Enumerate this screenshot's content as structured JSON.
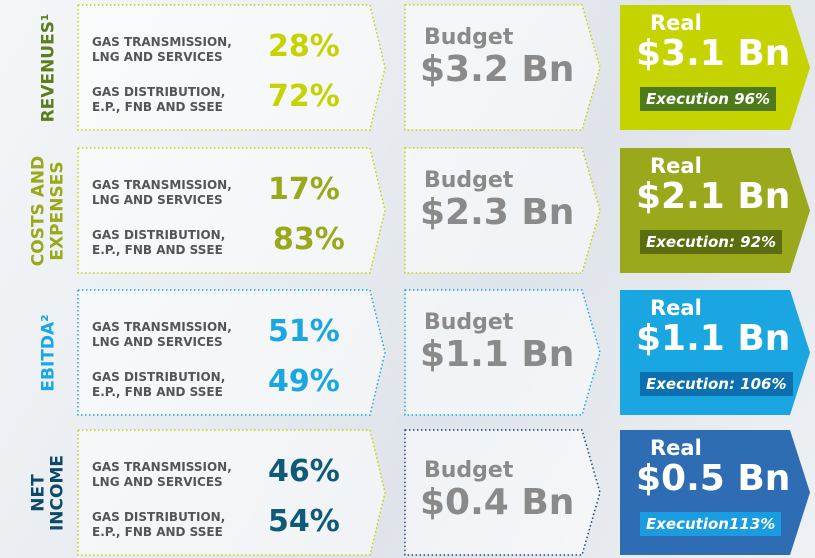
{
  "rows": [
    {
      "label": [
        "REVENUES¹"
      ],
      "items": [
        {
          "label": [
            "GAS TRANSMISSION,",
            "LNG AND SERVICES"
          ],
          "value": "28%"
        },
        {
          "label": [
            "GAS DISTRIBUTION,",
            "E.P., FNB AND SSEE"
          ],
          "value": "72%"
        }
      ],
      "budget": {
        "label": "Budget",
        "amount": "$3.2 Bn"
      },
      "real": {
        "label": "Real",
        "amount": "$3.1 Bn",
        "execution": "Execution 96%"
      }
    },
    {
      "label": [
        "COSTS AND",
        "EXPENSES"
      ],
      "items": [
        {
          "label": [
            "GAS TRANSMISSION,",
            "LNG AND SERVICES"
          ],
          "value": "17%"
        },
        {
          "label": [
            "GAS DISTRIBUTION,",
            "E.P., FNB AND SSEE"
          ],
          "value": "83%"
        }
      ],
      "budget": {
        "label": "Budget",
        "amount": "$2.3 Bn"
      },
      "real": {
        "label": "Real",
        "amount": "$2.1 Bn",
        "execution": "Execution: 92%"
      }
    },
    {
      "label": [
        "EBITDA²"
      ],
      "items": [
        {
          "label": [
            "GAS TRANSMISSION,",
            "LNG AND SERVICES"
          ],
          "value": "51%"
        },
        {
          "label": [
            "GAS DISTRIBUTION,",
            "E.P., FNB AND SSEE"
          ],
          "value": "49%"
        }
      ],
      "budget": {
        "label": "Budget",
        "amount": "$1.1 Bn"
      },
      "real": {
        "label": "Real",
        "amount": "$1.1 Bn",
        "execution": "Execution: 106%"
      }
    },
    {
      "label": [
        "NET",
        "INCOME"
      ],
      "items": [
        {
          "label": [
            "GAS TRANSMISSION,",
            "LNG AND SERVICES"
          ],
          "value": "46%"
        },
        {
          "label": [
            "GAS DISTRIBUTION,",
            "E.P., FNB AND SSEE"
          ],
          "value": "54%"
        }
      ],
      "budget": {
        "label": "Budget",
        "amount": "$0.4 Bn"
      },
      "real": {
        "label": "Real",
        "amount": "$0.5 Bn",
        "execution": "Execution113%"
      }
    }
  ]
}
